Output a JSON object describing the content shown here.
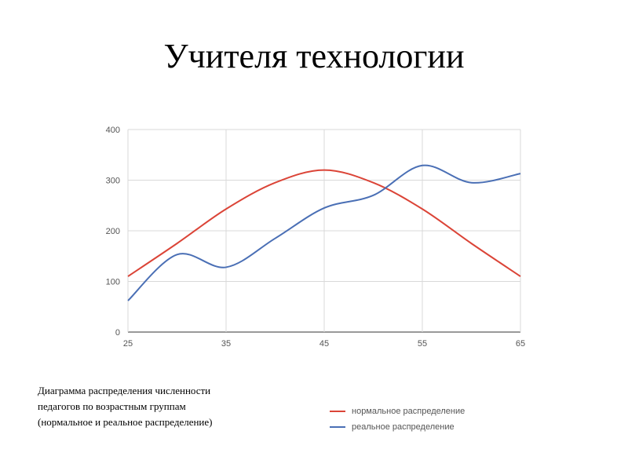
{
  "slide": {
    "title": "Учителя технологии",
    "caption_lines": [
      "Диаграмма распределения численности",
      "педагогов по возрастным группам",
      "(нормальное и реальное распределение)"
    ]
  },
  "chart_data": {
    "type": "line",
    "title": "",
    "xlabel": "",
    "ylabel": "",
    "xlim": [
      25,
      65
    ],
    "ylim": [
      0,
      400
    ],
    "x_ticks": [
      25,
      35,
      45,
      55,
      65
    ],
    "y_ticks": [
      0,
      100,
      200,
      300,
      400
    ],
    "grid": true,
    "legend_position": "bottom-right",
    "series": [
      {
        "name": "нормальное распределение",
        "color": "#db4437",
        "x": [
          25,
          30,
          35,
          40,
          45,
          50,
          55,
          60,
          65
        ],
        "y": [
          110,
          175,
          243,
          295,
          320,
          295,
          243,
          175,
          110
        ]
      },
      {
        "name": "реальное распределение",
        "color": "#4a6fb5",
        "x": [
          25,
          30,
          35,
          40,
          45,
          50,
          55,
          60,
          65
        ],
        "y": [
          62,
          153,
          128,
          185,
          245,
          270,
          329,
          295,
          313
        ]
      }
    ]
  }
}
